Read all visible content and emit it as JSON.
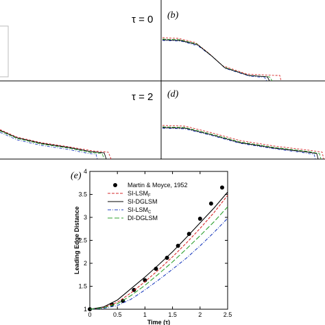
{
  "figure": {
    "panel_labels": [
      "(b)",
      "(d)",
      "(e)"
    ],
    "tau_labels": [
      "τ = 0",
      "τ = 2"
    ]
  },
  "colors": {
    "martin_moyce": "#000000",
    "si_lsm_f": "#d62728",
    "si_dglsm": "#000000",
    "si_lsm_c": "#1f3fbf",
    "di_dglsm": "#2ca02c"
  },
  "chart_data": {
    "type": "line",
    "title": "",
    "xlabel": "Time (τ)",
    "ylabel": "Leading Edge Distance",
    "xlim": [
      0,
      2.5
    ],
    "ylim": [
      1,
      4
    ],
    "xticks": [
      "0",
      "0.5",
      "1",
      "1.5",
      "2",
      "2.5"
    ],
    "yticks": [
      "1",
      "1.5",
      "2",
      "2.5",
      "3",
      "3.5",
      "4"
    ],
    "grid": false,
    "legend_position": "top-left",
    "series": [
      {
        "name": "Martin & Moyce, 1952",
        "style": "markers",
        "x": [
          0.0,
          0.4,
          0.6,
          0.8,
          1.0,
          1.2,
          1.4,
          1.6,
          1.8,
          2.0,
          2.2,
          2.4
        ],
        "y": [
          1.0,
          1.1,
          1.18,
          1.42,
          1.63,
          1.88,
          2.12,
          2.38,
          2.64,
          2.97,
          3.3,
          3.65
        ]
      },
      {
        "name": "SI-LSM",
        "subscript": "F",
        "style": "dashed",
        "x": [
          0.0,
          0.25,
          0.5,
          0.75,
          1.0,
          1.25,
          1.5,
          1.75,
          2.0,
          2.25,
          2.5
        ],
        "y": [
          1.0,
          1.04,
          1.15,
          1.36,
          1.6,
          1.86,
          2.14,
          2.44,
          2.76,
          3.1,
          3.48
        ]
      },
      {
        "name": "SI-DGLSM",
        "style": "solid",
        "x": [
          0.0,
          0.25,
          0.5,
          0.75,
          1.0,
          1.25,
          1.5,
          1.75,
          2.0,
          2.25,
          2.5
        ],
        "y": [
          1.0,
          1.05,
          1.2,
          1.45,
          1.7,
          1.97,
          2.25,
          2.56,
          2.88,
          3.2,
          3.55
        ]
      },
      {
        "name": "SI-LSM",
        "subscript": "C",
        "style": "dashdot",
        "x": [
          0.0,
          0.25,
          0.5,
          0.75,
          1.0,
          1.25,
          1.5,
          1.75,
          2.0,
          2.25,
          2.5
        ],
        "y": [
          1.0,
          1.02,
          1.08,
          1.22,
          1.42,
          1.64,
          1.87,
          2.11,
          2.38,
          2.67,
          2.98
        ]
      },
      {
        "name": "DI-DGLSM",
        "style": "longdash",
        "x": [
          0.0,
          0.25,
          0.5,
          0.75,
          1.0,
          1.25,
          1.5,
          1.75,
          2.0,
          2.25,
          2.5
        ],
        "y": [
          1.0,
          1.03,
          1.12,
          1.3,
          1.52,
          1.77,
          2.03,
          2.31,
          2.6,
          2.9,
          3.23
        ]
      }
    ]
  }
}
